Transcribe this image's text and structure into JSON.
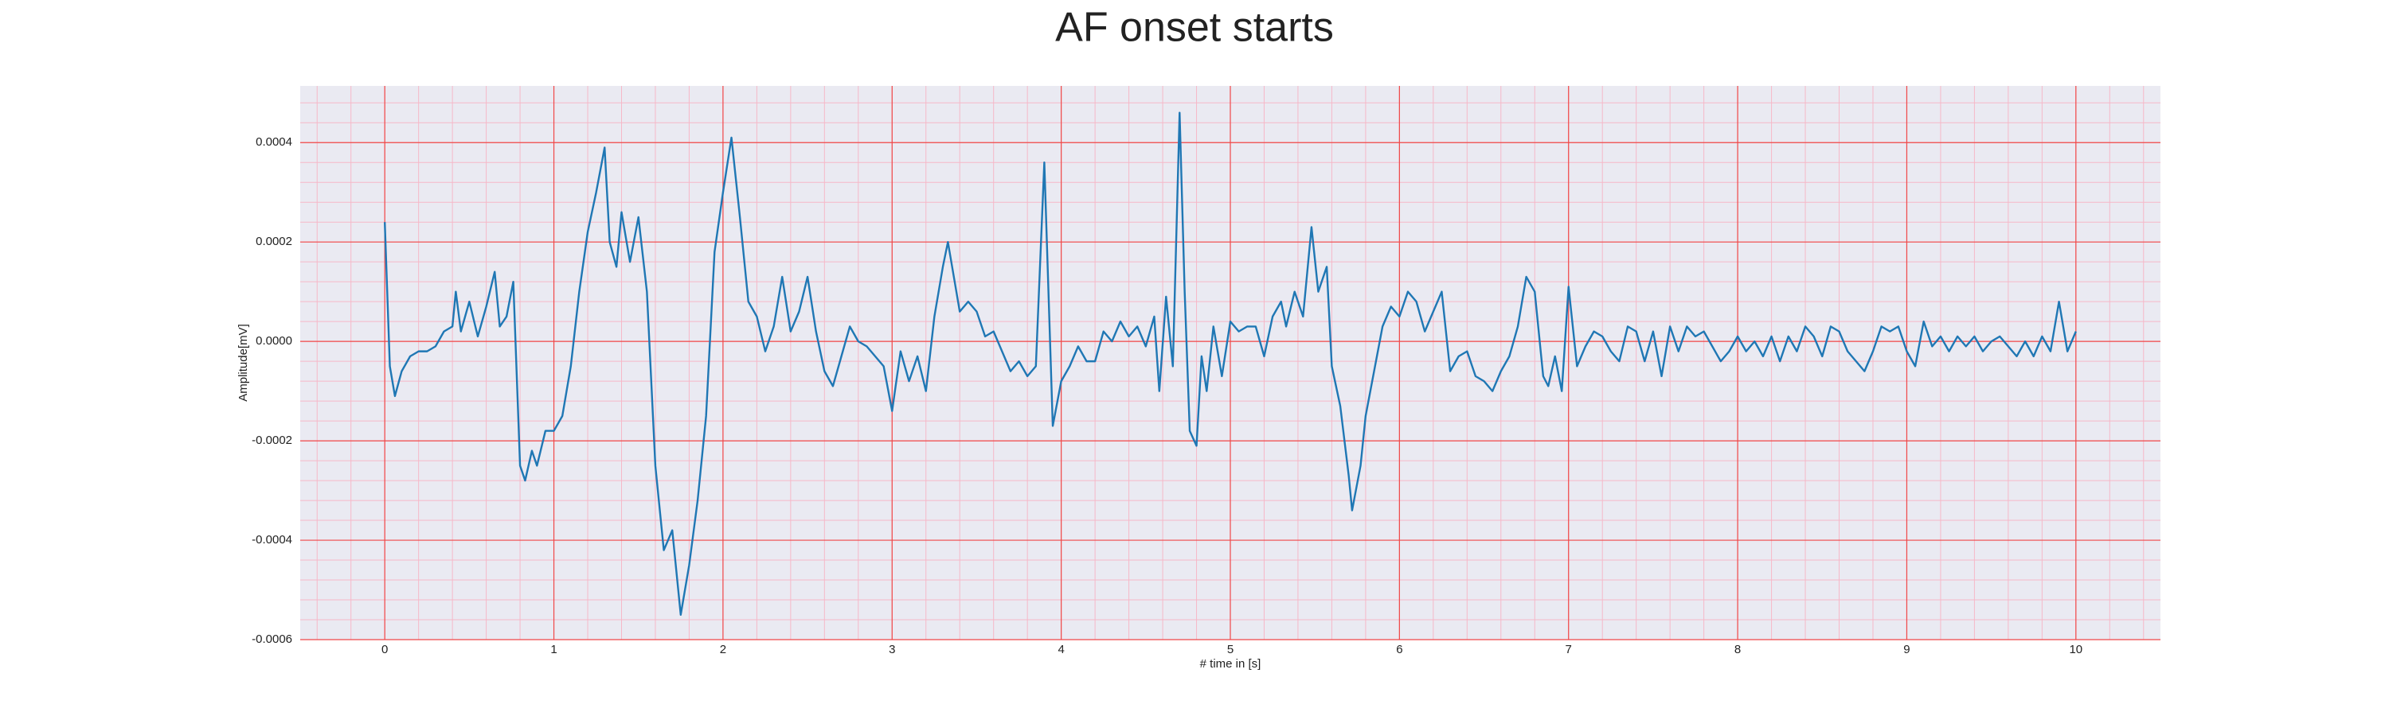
{
  "chart_data": {
    "type": "line",
    "title": "AF onset starts",
    "xlabel": "# time in [s]",
    "ylabel": "Amplitude[mV]",
    "color": "#1f77b4",
    "grid": true,
    "minor_grid": true,
    "xlim": [
      -0.5,
      10.5
    ],
    "ylim": [
      -0.0006,
      0.000514
    ],
    "xticks": [
      0,
      1,
      2,
      3,
      4,
      5,
      6,
      7,
      8,
      9,
      10
    ],
    "yticks": [
      -0.0006,
      -0.0004,
      -0.0002,
      {
        "value": 0,
        "label": "0.0000"
      },
      0.0002,
      0.0004
    ],
    "x": [
      0,
      0.03,
      0.06,
      0.1,
      0.15,
      0.2,
      0.25,
      0.3,
      0.35,
      0.4,
      0.42,
      0.45,
      0.5,
      0.55,
      0.6,
      0.65,
      0.68,
      0.72,
      0.76,
      0.8,
      0.83,
      0.87,
      0.9,
      0.95,
      1.0,
      1.05,
      1.1,
      1.15,
      1.2,
      1.25,
      1.3,
      1.33,
      1.37,
      1.4,
      1.45,
      1.5,
      1.55,
      1.6,
      1.65,
      1.7,
      1.75,
      1.8,
      1.85,
      1.9,
      1.95,
      2.0,
      2.05,
      2.1,
      2.15,
      2.2,
      2.25,
      2.3,
      2.35,
      2.4,
      2.45,
      2.5,
      2.55,
      2.6,
      2.65,
      2.7,
      2.75,
      2.8,
      2.85,
      2.9,
      2.95,
      3.0,
      3.05,
      3.1,
      3.15,
      3.2,
      3.25,
      3.3,
      3.33,
      3.4,
      3.45,
      3.5,
      3.55,
      3.6,
      3.65,
      3.7,
      3.75,
      3.8,
      3.85,
      3.9,
      3.95,
      4.0,
      4.05,
      4.1,
      4.15,
      4.2,
      4.25,
      4.3,
      4.35,
      4.4,
      4.45,
      4.5,
      4.55,
      4.58,
      4.62,
      4.66,
      4.7,
      4.73,
      4.76,
      4.8,
      4.83,
      4.86,
      4.9,
      4.95,
      5.0,
      5.05,
      5.1,
      5.15,
      5.2,
      5.25,
      5.3,
      5.33,
      5.38,
      5.43,
      5.48,
      5.52,
      5.57,
      5.6,
      5.65,
      5.7,
      5.72,
      5.77,
      5.8,
      5.85,
      5.9,
      5.95,
      6.0,
      6.05,
      6.1,
      6.15,
      6.2,
      6.25,
      6.3,
      6.35,
      6.4,
      6.45,
      6.5,
      6.55,
      6.6,
      6.65,
      6.7,
      6.75,
      6.8,
      6.85,
      6.88,
      6.92,
      6.96,
      7.0,
      7.05,
      7.1,
      7.15,
      7.2,
      7.25,
      7.3,
      7.35,
      7.4,
      7.45,
      7.5,
      7.55,
      7.6,
      7.65,
      7.7,
      7.75,
      7.8,
      7.85,
      7.9,
      7.95,
      8.0,
      8.05,
      8.1,
      8.15,
      8.2,
      8.25,
      8.3,
      8.35,
      8.4,
      8.45,
      8.5,
      8.55,
      8.6,
      8.65,
      8.7,
      8.75,
      8.8,
      8.85,
      8.9,
      8.95,
      9.0,
      9.05,
      9.1,
      9.15,
      9.2,
      9.25,
      9.3,
      9.35,
      9.4,
      9.45,
      9.5,
      9.55,
      9.6,
      9.65,
      9.7,
      9.75,
      9.8,
      9.85,
      9.9,
      9.95,
      10.0
    ],
    "values": [
      0.00024,
      -5e-05,
      -0.00011,
      -6e-05,
      -3e-05,
      -2e-05,
      -2e-05,
      -1e-05,
      2e-05,
      3e-05,
      0.0001,
      2e-05,
      8e-05,
      1e-05,
      7e-05,
      0.00014,
      3e-05,
      5e-05,
      0.00012,
      -0.00025,
      -0.00028,
      -0.00022,
      -0.00025,
      -0.00018,
      -0.00018,
      -0.00015,
      -5e-05,
      0.0001,
      0.00022,
      0.0003,
      0.00039,
      0.0002,
      0.00015,
      0.00026,
      0.00016,
      0.00025,
      0.0001,
      -0.00025,
      -0.00042,
      -0.00038,
      -0.00055,
      -0.00045,
      -0.00032,
      -0.00015,
      0.00018,
      0.0003,
      0.00041,
      0.00025,
      8e-05,
      5e-05,
      -2e-05,
      3e-05,
      0.00013,
      2e-05,
      6e-05,
      0.00013,
      2e-05,
      -6e-05,
      -9e-05,
      -3e-05,
      3e-05,
      0,
      -1e-05,
      -3e-05,
      -5e-05,
      -0.00014,
      -2e-05,
      -8e-05,
      -3e-05,
      -0.0001,
      5e-05,
      0.00015,
      0.0002,
      6e-05,
      8e-05,
      6e-05,
      1e-05,
      2e-05,
      -2e-05,
      -6e-05,
      -4e-05,
      -7e-05,
      -5e-05,
      0.00036,
      -0.00017,
      -8e-05,
      -5e-05,
      -1e-05,
      -4e-05,
      -4e-05,
      2e-05,
      0,
      4e-05,
      1e-05,
      3e-05,
      -1e-05,
      5e-05,
      -0.0001,
      9e-05,
      -5e-05,
      0.00046,
      0.0001,
      -0.00018,
      -0.00021,
      -3e-05,
      -0.0001,
      3e-05,
      -7e-05,
      4e-05,
      2e-05,
      3e-05,
      3e-05,
      -3e-05,
      5e-05,
      8e-05,
      3e-05,
      0.0001,
      5e-05,
      0.00023,
      0.0001,
      0.00015,
      -5e-05,
      -0.00013,
      -0.00027,
      -0.00034,
      -0.00025,
      -0.00015,
      -6e-05,
      3e-05,
      7e-05,
      5e-05,
      0.0001,
      8e-05,
      2e-05,
      6e-05,
      0.0001,
      -6e-05,
      -3e-05,
      -2e-05,
      -7e-05,
      -8e-05,
      -0.0001,
      -6e-05,
      -3e-05,
      3e-05,
      0.00013,
      0.0001,
      -7e-05,
      -9e-05,
      -3e-05,
      -0.0001,
      0.00011,
      -5e-05,
      -1e-05,
      2e-05,
      1e-05,
      -2e-05,
      -4e-05,
      3e-05,
      2e-05,
      -4e-05,
      2e-05,
      -7e-05,
      3e-05,
      -2e-05,
      3e-05,
      1e-05,
      2e-05,
      -1e-05,
      -4e-05,
      -2e-05,
      1e-05,
      -2e-05,
      0,
      -3e-05,
      1e-05,
      -4e-05,
      1e-05,
      -2e-05,
      3e-05,
      1e-05,
      -3e-05,
      3e-05,
      2e-05,
      -2e-05,
      -4e-05,
      -6e-05,
      -2e-05,
      3e-05,
      2e-05,
      3e-05,
      -2e-05,
      -5e-05,
      4e-05,
      -1e-05,
      1e-05,
      -2e-05,
      1e-05,
      -1e-05,
      1e-05,
      -2e-05,
      0,
      1e-05,
      -1e-05,
      -3e-05,
      0,
      -3e-05,
      1e-05,
      -2e-05,
      8e-05,
      -2e-05,
      2e-05
    ]
  }
}
